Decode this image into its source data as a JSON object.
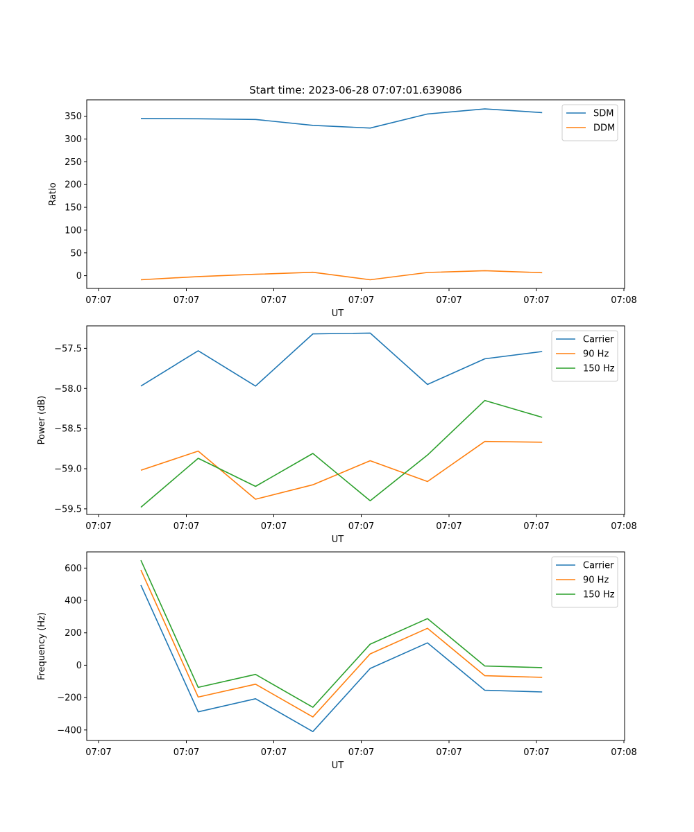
{
  "figure_title": "Start time: 2023-06-28 07:07:01.639086",
  "chart_data": [
    {
      "type": "line",
      "title": "Start time: 2023-06-28 07:07:01.639086",
      "xlabel": "UT",
      "ylabel": "Ratio",
      "x_tick_labels": [
        "07:07",
        "07:07",
        "07:07",
        "07:07",
        "07:07",
        "07:07",
        "07:08"
      ],
      "y_ticks": [
        0,
        50,
        100,
        150,
        200,
        250,
        300,
        350
      ],
      "y_tick_labels": [
        "0",
        "50",
        "100",
        "150",
        "200",
        "250",
        "300",
        "350"
      ],
      "ylim": [
        -28,
        386
      ],
      "x": [
        1,
        2,
        3,
        4,
        5,
        6,
        7,
        8
      ],
      "legend_position": "top-right",
      "grid": false,
      "series": [
        {
          "name": "SDM",
          "color": "#1f77b4",
          "values": [
            345,
            344.5,
            343,
            330,
            324,
            355,
            366,
            358
          ]
        },
        {
          "name": "DDM",
          "color": "#ff7f0e",
          "values": [
            -9,
            -2,
            3,
            7.5,
            -9,
            7,
            11,
            6.5
          ]
        }
      ]
    },
    {
      "type": "line",
      "title": "",
      "xlabel": "UT",
      "ylabel": "Power (dB)",
      "x_tick_labels": [
        "07:07",
        "07:07",
        "07:07",
        "07:07",
        "07:07",
        "07:07",
        "07:08"
      ],
      "y_ticks": [
        -57.5,
        -58.0,
        -58.5,
        -59.0,
        -59.5
      ],
      "y_tick_labels": [
        "−57.5",
        "−58.0",
        "−58.5",
        "−59.0",
        "−59.5"
      ],
      "ylim": [
        -59.57,
        -57.22
      ],
      "x": [
        1,
        2,
        3,
        4,
        5,
        6,
        7,
        8
      ],
      "legend_position": "top-right",
      "grid": false,
      "series": [
        {
          "name": "Carrier",
          "color": "#1f77b4",
          "values": [
            -57.97,
            -57.53,
            -57.97,
            -57.32,
            -57.31,
            -57.95,
            -57.63,
            -57.54
          ]
        },
        {
          "name": "90 Hz",
          "color": "#ff7f0e",
          "values": [
            -59.02,
            -58.78,
            -59.38,
            -59.2,
            -58.9,
            -59.16,
            -58.66,
            -58.67
          ]
        },
        {
          "name": "150 Hz",
          "color": "#2ca02c",
          "values": [
            -59.48,
            -58.87,
            -59.22,
            -58.81,
            -59.4,
            -58.83,
            -58.15,
            -58.36
          ]
        }
      ]
    },
    {
      "type": "line",
      "title": "",
      "xlabel": "UT",
      "ylabel": "Frequency (Hz)",
      "x_tick_labels": [
        "07:07",
        "07:07",
        "07:07",
        "07:07",
        "07:07",
        "07:07",
        "07:08"
      ],
      "y_ticks": [
        600,
        400,
        200,
        0,
        -200,
        -400
      ],
      "y_tick_labels": [
        "600",
        "400",
        "200",
        "0",
        "−200",
        "−400"
      ],
      "ylim": [
        -465,
        700
      ],
      "x": [
        1,
        2,
        3,
        4,
        5,
        6,
        7,
        8
      ],
      "legend_position": "top-right",
      "grid": false,
      "series": [
        {
          "name": "Carrier",
          "color": "#1f77b4",
          "values": [
            495,
            -288,
            -207,
            -410,
            -20,
            138,
            -155,
            -165
          ]
        },
        {
          "name": "90 Hz",
          "color": "#ff7f0e",
          "values": [
            588,
            -197,
            -117,
            -320,
            70,
            228,
            -65,
            -75
          ]
        },
        {
          "name": "150 Hz",
          "color": "#2ca02c",
          "values": [
            648,
            -137,
            -57,
            -260,
            130,
            288,
            -5,
            -15
          ]
        }
      ]
    }
  ]
}
